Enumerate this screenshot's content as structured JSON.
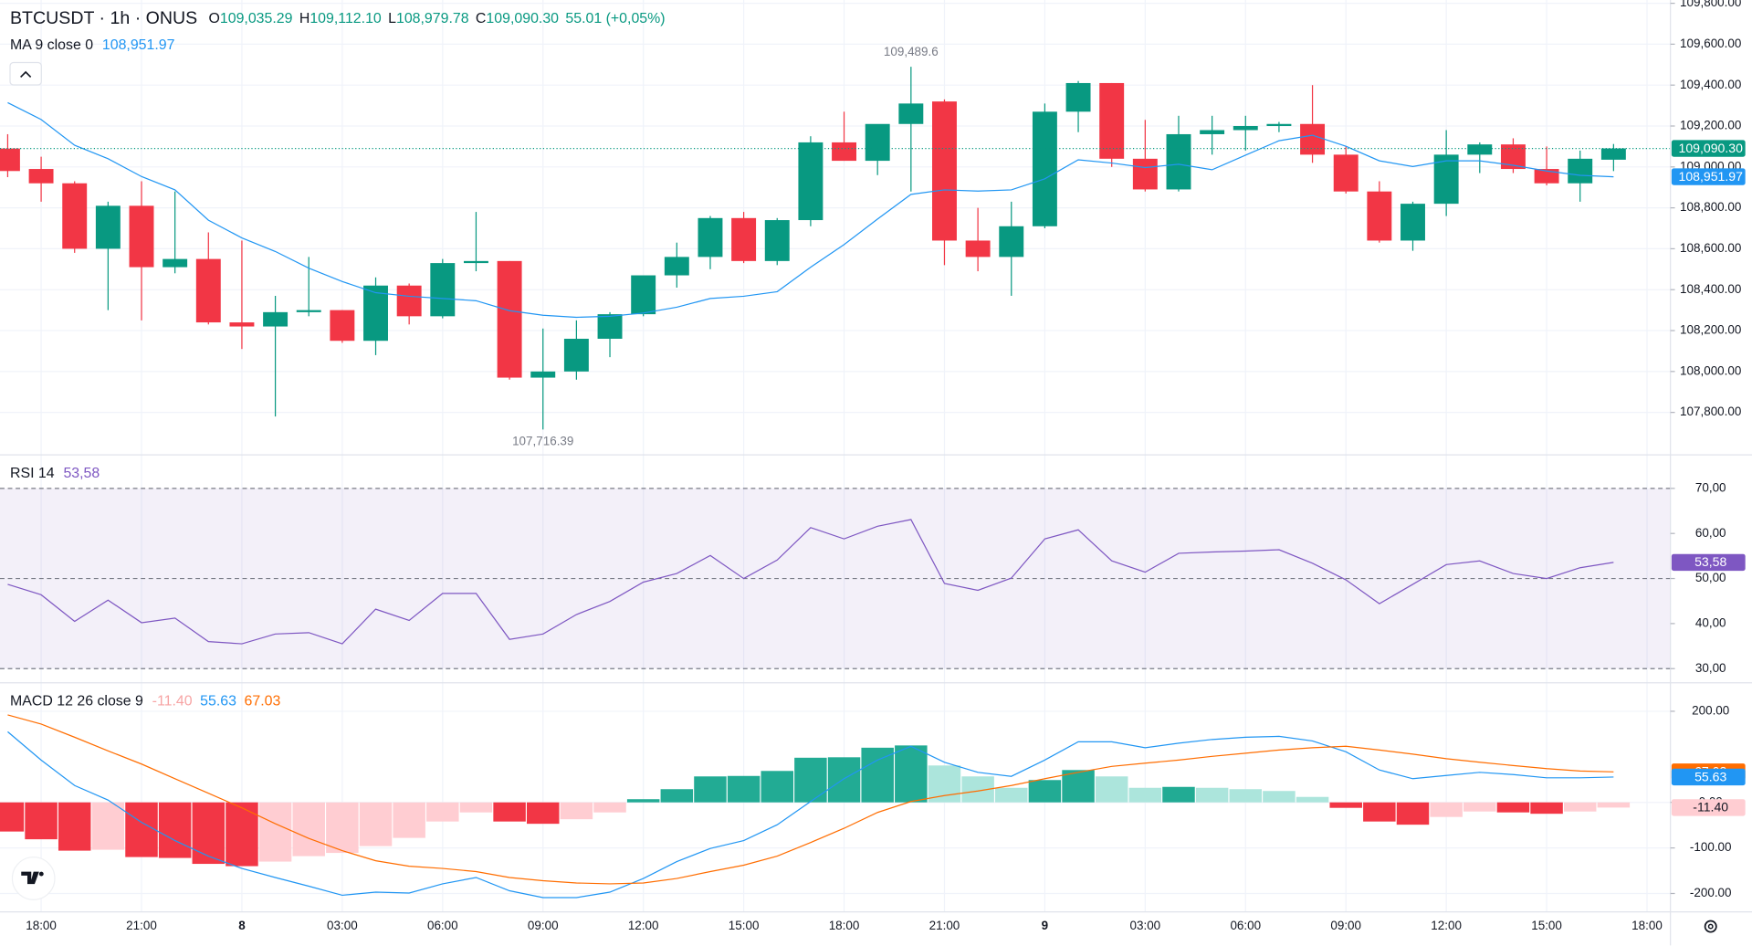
{
  "chart_data": [
    {
      "type": "candlestick",
      "title": "BTCUSDT · 1h · ONUS",
      "ohlc_labels": [
        {
          "key": "O",
          "label": "109,035.29"
        },
        {
          "key": "H",
          "label": "109,112.10"
        },
        {
          "key": "L",
          "label": "108,979.78"
        },
        {
          "key": "C",
          "label": "109,090.30"
        }
      ],
      "change_label": "55.01 (+0,05%)",
      "x": [
        0,
        1,
        2,
        3,
        4,
        5,
        6,
        7,
        8,
        9,
        10,
        11,
        12,
        13,
        14,
        15,
        16,
        17,
        18,
        19,
        20,
        21,
        22,
        23,
        24,
        25,
        26,
        27,
        28,
        29,
        30,
        31,
        32,
        33,
        34,
        35,
        36,
        37,
        38,
        39,
        40,
        41,
        42,
        43,
        44,
        45,
        46,
        47,
        48
      ],
      "open": [
        109090,
        108990,
        108920,
        108600,
        108810,
        108510,
        108550,
        108240,
        108220,
        108290,
        108300,
        108150,
        108420,
        108270,
        108530,
        108540,
        107970,
        108000,
        108160,
        108280,
        108470,
        108560,
        108750,
        108540,
        108740,
        109120,
        109030,
        109210,
        109320,
        108640,
        108560,
        108710,
        109270,
        109410,
        109040,
        108890,
        109160,
        109180,
        109200,
        109210,
        109060,
        108880,
        108640,
        108820,
        109060,
        109110,
        108990,
        108920,
        109035.29
      ],
      "high": [
        109160,
        109050,
        108930,
        108830,
        108930,
        108880,
        108680,
        108640,
        108370,
        108560,
        108300,
        108460,
        108430,
        108550,
        108780,
        108540,
        108210,
        108250,
        108290,
        108460,
        108630,
        108760,
        108780,
        108750,
        109150,
        109270,
        109190,
        109489.6,
        109330,
        108800,
        108830,
        109310,
        109420,
        109410,
        109230,
        109250,
        109250,
        109250,
        109220,
        109400,
        109100,
        108930,
        108830,
        109180,
        109120,
        109140,
        109100,
        109080,
        109112.1
      ],
      "low": [
        108950,
        108830,
        108580,
        108300,
        108250,
        108480,
        108230,
        108110,
        107780,
        108270,
        108140,
        108080,
        108230,
        108260,
        108490,
        107960,
        107716.39,
        107960,
        108070,
        108270,
        108410,
        108500,
        108530,
        108520,
        108710,
        109030,
        108960,
        108880,
        108520,
        108490,
        108370,
        108700,
        109170,
        109000,
        108880,
        108880,
        109060,
        109080,
        109170,
        109020,
        108870,
        108630,
        108590,
        108760,
        108970,
        108970,
        108910,
        108830,
        108979.78
      ],
      "close": [
        108980,
        108920,
        108600,
        108810,
        108510,
        108550,
        108240,
        108220,
        108290,
        108300,
        108150,
        108420,
        108270,
        108530,
        108540,
        107970,
        108000,
        108160,
        108280,
        108470,
        108560,
        108750,
        108540,
        108740,
        109120,
        109030,
        109210,
        109310,
        108640,
        108560,
        108710,
        109270,
        109410,
        109040,
        108890,
        109160,
        109180,
        109200,
        109210,
        109060,
        108880,
        108640,
        108820,
        109060,
        109110,
        108990,
        108920,
        109040,
        109090.3
      ],
      "last_label": "109,090.30",
      "up_color": "#089981",
      "down_color": "#f23645",
      "annotations": [
        {
          "text": "109,489.6",
          "x": 27,
          "y": 109489.6,
          "position": "above"
        },
        {
          "text": "107,716.39",
          "x": 16,
          "y": 107716.39,
          "position": "below"
        }
      ],
      "series": [
        {
          "name": "MA 9 close 0",
          "color": "#2196f3",
          "last_label": "108,951.97",
          "values": [
            109314,
            109232,
            109106,
            109040,
            108953,
            108888,
            108740,
            108653,
            108587,
            108505,
            108440,
            108385,
            108368,
            108357,
            108346,
            108297,
            108275,
            108265,
            108270,
            108286,
            108314,
            108357,
            108368,
            108390,
            108510,
            108620,
            108745,
            108866,
            108888,
            108882,
            108888,
            108942,
            109035,
            109019,
            108997,
            109013,
            108986,
            109057,
            109128,
            109155,
            109101,
            109030,
            109002,
            109030,
            109030,
            109008,
            108980,
            108959,
            108951.97
          ]
        }
      ],
      "xlim": [
        -0.23,
        49.7
      ],
      "xticks": [
        {
          "value": 1,
          "label": "18:00"
        },
        {
          "value": 4,
          "label": "21:00"
        },
        {
          "value": 7,
          "label": "8"
        },
        {
          "value": 10,
          "label": "03:00"
        },
        {
          "value": 13,
          "label": "06:00"
        },
        {
          "value": 16,
          "label": "09:00"
        },
        {
          "value": 19,
          "label": "12:00"
        },
        {
          "value": 22,
          "label": "15:00"
        },
        {
          "value": 25,
          "label": "18:00"
        },
        {
          "value": 28,
          "label": "21:00"
        },
        {
          "value": 31,
          "label": "9"
        },
        {
          "value": 34,
          "label": "03:00"
        },
        {
          "value": 37,
          "label": "06:00"
        },
        {
          "value": 40,
          "label": "09:00"
        },
        {
          "value": 43,
          "label": "12:00"
        },
        {
          "value": 46,
          "label": "15:00"
        },
        {
          "value": 49,
          "label": "18:00"
        }
      ],
      "ylim": [
        107598,
        109816
      ],
      "yticks": [
        {
          "value": 109800,
          "label": "109,800.00"
        },
        {
          "value": 109600,
          "label": "109,600.00"
        },
        {
          "value": 109400,
          "label": "109,400.00"
        },
        {
          "value": 109200,
          "label": "109,200.00"
        },
        {
          "value": 109000,
          "label": "109,000.00"
        },
        {
          "value": 108800,
          "label": "108,800.00"
        },
        {
          "value": 108600,
          "label": "108,600.00"
        },
        {
          "value": 108400,
          "label": "108,400.00"
        },
        {
          "value": 108200,
          "label": "108,200.00"
        },
        {
          "value": 108000,
          "label": "108,000.00"
        },
        {
          "value": 107800,
          "label": "107,800.00"
        }
      ],
      "grid": true
    },
    {
      "type": "line",
      "title": "RSI 14",
      "series": [
        {
          "color": "#7e57c2",
          "last_label": "53,58",
          "values": [
            48.7,
            46.4,
            40.5,
            45.2,
            40.2,
            41.2,
            36.0,
            35.5,
            37.7,
            38.0,
            35.5,
            43.2,
            40.7,
            46.7,
            46.7,
            36.5,
            37.7,
            42.0,
            44.9,
            49.2,
            51.1,
            55.1,
            50.0,
            54.1,
            61.3,
            58.8,
            61.6,
            63.1,
            48.9,
            47.4,
            50.1,
            58.8,
            60.8,
            53.9,
            51.4,
            55.6,
            55.9,
            56.1,
            56.4,
            53.4,
            49.7,
            44.4,
            48.7,
            53.1,
            53.9,
            51.1,
            50.0,
            52.4,
            53.58
          ]
        }
      ],
      "band": [
        30,
        70
      ],
      "levels": [
        70,
        50,
        30
      ],
      "ylim": [
        27.1,
        77.2
      ],
      "yticks": [
        {
          "value": 70,
          "label": "70,00"
        },
        {
          "value": 60,
          "label": "60,00"
        },
        {
          "value": 50,
          "label": "50,00"
        },
        {
          "value": 40,
          "label": "40,00"
        },
        {
          "value": 30,
          "label": "30,00"
        }
      ]
    },
    {
      "type": "macd",
      "title": "MACD 12 26 close 9",
      "histogram": {
        "last_label": "-11.40",
        "colors": {
          "up_strong": "#22ab94",
          "up_light": "#ace5dc",
          "down_strong": "#f23645",
          "down_light": "#ffcdd2"
        },
        "values": [
          -64,
          -81,
          -106,
          -104,
          -120,
          -122,
          -135,
          -140,
          -130,
          -118,
          -111,
          -96,
          -78,
          -42,
          -22,
          -42,
          -47,
          -37,
          -22,
          7,
          29,
          57,
          58,
          69,
          98,
          99,
          120,
          125,
          81,
          57,
          32,
          49,
          71,
          57,
          32,
          34,
          32,
          29,
          25,
          12,
          -12,
          -42,
          -49,
          -32,
          -20,
          -22,
          -25,
          -20,
          -11.4
        ]
      },
      "series": [
        {
          "color": "#2196f3",
          "last_label": "55.63",
          "values": [
            155,
            93,
            37,
            5,
            -44,
            -84,
            -118,
            -145,
            -165,
            -184,
            -204,
            -197,
            -199,
            -179,
            -165,
            -194,
            -209,
            -209,
            -197,
            -167,
            -130,
            -101,
            -84,
            -49,
            2,
            52,
            93,
            123,
            88,
            66,
            57,
            93,
            133,
            133,
            120,
            130,
            138,
            143,
            145,
            135,
            111,
            71,
            52,
            59,
            66,
            61,
            54,
            54,
            55.63
          ]
        },
        {
          "color": "#ff6d00",
          "last_label": "67.03",
          "values": [
            192,
            172,
            143,
            113,
            84,
            52,
            20,
            -12,
            -47,
            -79,
            -106,
            -128,
            -140,
            -145,
            -152,
            -165,
            -172,
            -177,
            -179,
            -177,
            -167,
            -152,
            -138,
            -118,
            -88,
            -57,
            -22,
            2,
            15,
            25,
            37,
            52,
            66,
            79,
            86,
            93,
            101,
            108,
            115,
            120,
            123,
            115,
            106,
            96,
            88,
            81,
            74,
            69,
            67.03
          ]
        }
      ],
      "ylim": [
        -238,
        260
      ],
      "yticks": [
        {
          "value": 200,
          "label": "200.00"
        },
        {
          "value": 0,
          "label": "0.00"
        },
        {
          "value": -100,
          "label": "-100.00"
        },
        {
          "value": -200,
          "label": "-200.00"
        }
      ]
    }
  ]
}
